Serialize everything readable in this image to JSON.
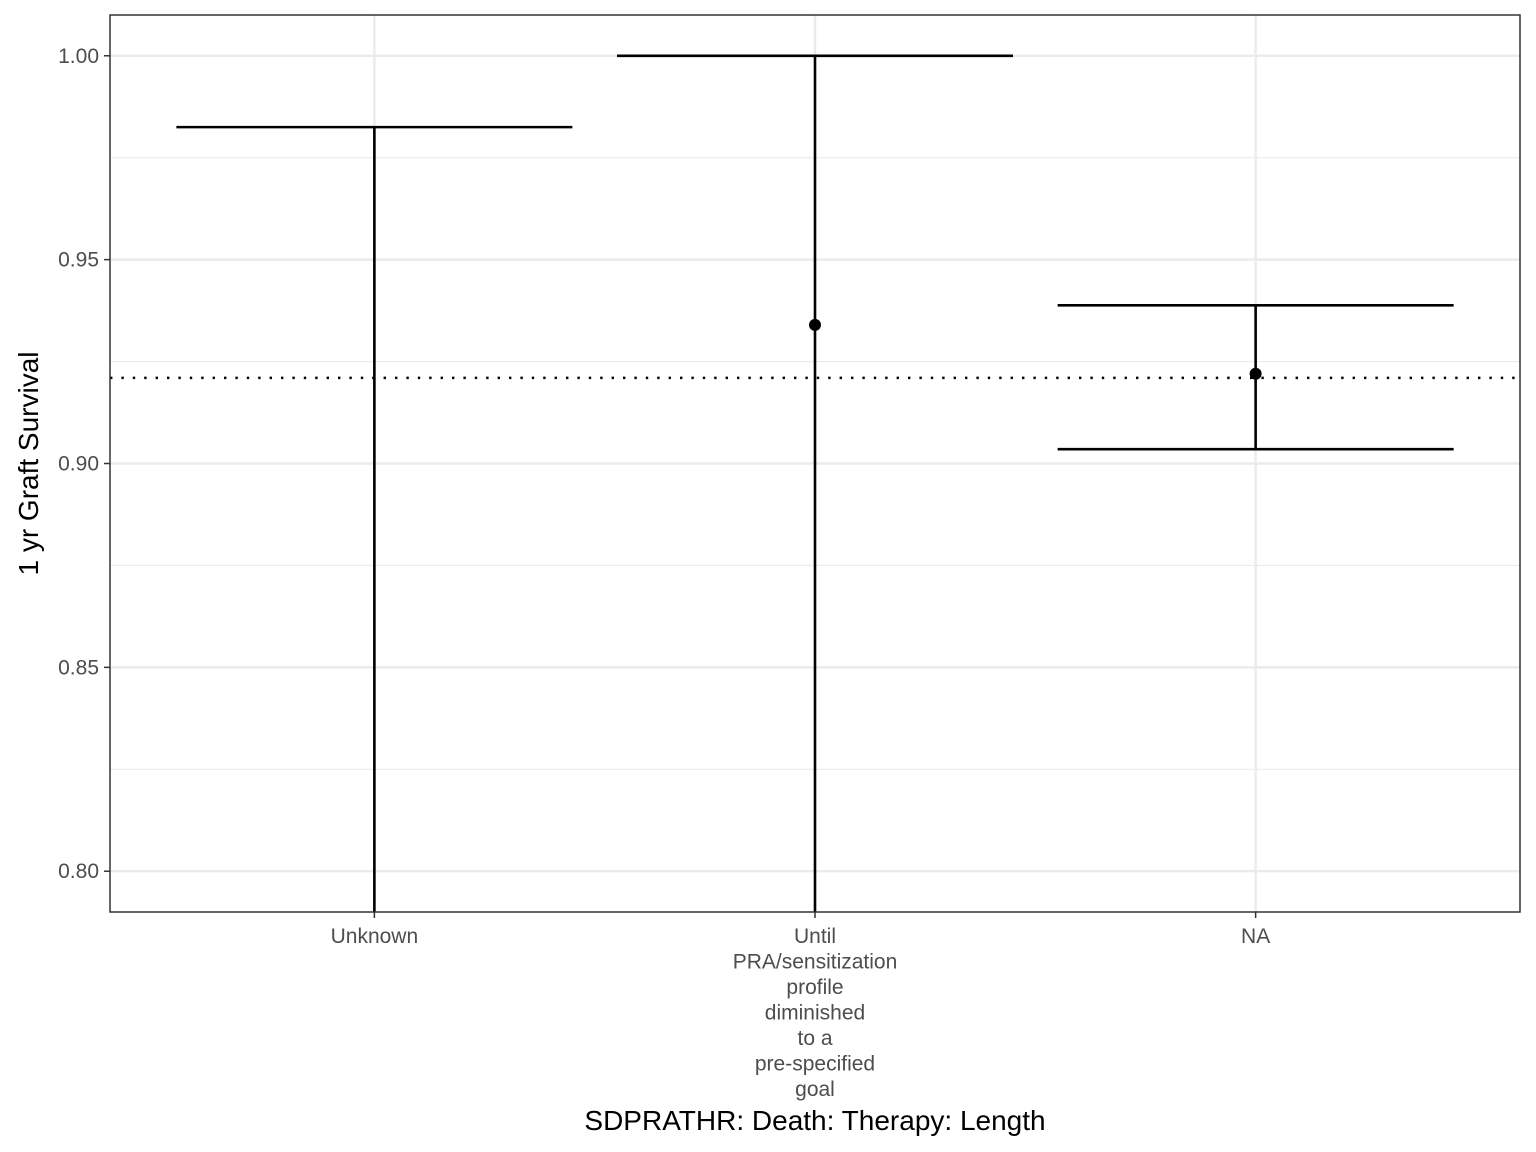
{
  "chart_data": {
    "type": "errorbar",
    "title": "",
    "xlabel": "SDPRATHR: Death: Therapy: Length",
    "ylabel": "1 yr Graft Survival",
    "categories": [
      "Unknown",
      "Until\nPRA/sensitization\nprofile\ndiminished\nto a\npre-specified\ngoal",
      "NA"
    ],
    "series": [
      {
        "estimate": [
          null,
          0.934,
          0.922
        ],
        "lower": [
          0.79,
          0.79,
          0.9035
        ],
        "upper": [
          0.9825,
          1.0,
          0.9388
        ]
      }
    ],
    "reference_line": {
      "y": 0.921,
      "style": "dotted"
    },
    "ylim": [
      0.79,
      1.01
    ],
    "yticks": [
      0.8,
      0.85,
      0.9,
      0.95,
      1.0
    ],
    "ytick_labels": [
      "0.80",
      "0.85",
      "0.90",
      "0.95",
      "1.00"
    ],
    "grid": true,
    "legend": "none",
    "colors": {
      "mark": "#000000",
      "grid": "#ebebeb",
      "panel_border": "#333333",
      "tick_text": "#4d4d4d"
    }
  }
}
